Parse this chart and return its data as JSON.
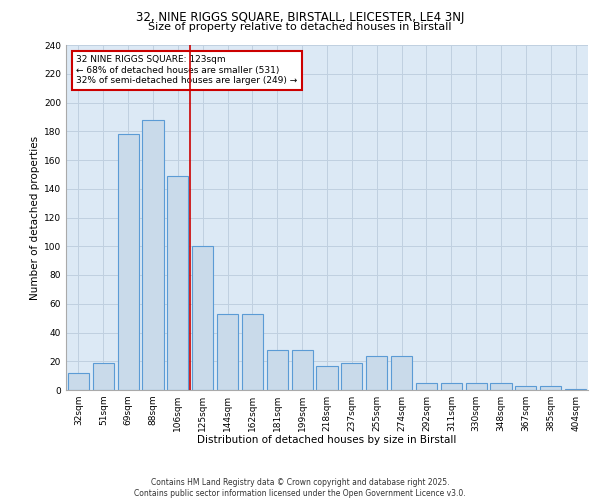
{
  "title1": "32, NINE RIGGS SQUARE, BIRSTALL, LEICESTER, LE4 3NJ",
  "title2": "Size of property relative to detached houses in Birstall",
  "xlabel": "Distribution of detached houses by size in Birstall",
  "ylabel": "Number of detached properties",
  "categories": [
    "32sqm",
    "51sqm",
    "69sqm",
    "88sqm",
    "106sqm",
    "125sqm",
    "144sqm",
    "162sqm",
    "181sqm",
    "199sqm",
    "218sqm",
    "237sqm",
    "255sqm",
    "274sqm",
    "292sqm",
    "311sqm",
    "330sqm",
    "348sqm",
    "367sqm",
    "385sqm",
    "404sqm"
  ],
  "bar_values": [
    12,
    19,
    178,
    188,
    149,
    100,
    53,
    53,
    28,
    28,
    17,
    19,
    24,
    24,
    5,
    5,
    5,
    5,
    3,
    3,
    1
  ],
  "bar_color": "#c9daea",
  "bar_edgecolor": "#5b9bd5",
  "bar_linewidth": 0.8,
  "vline_color": "#cc0000",
  "vline_linewidth": 1.2,
  "annotation_text": "32 NINE RIGGS SQUARE: 123sqm\n← 68% of detached houses are smaller (531)\n32% of semi-detached houses are larger (249) →",
  "annotation_box_edgecolor": "#cc0000",
  "annotation_fontsize": 6.5,
  "ylim": [
    0,
    240
  ],
  "yticks": [
    0,
    20,
    40,
    60,
    80,
    100,
    120,
    140,
    160,
    180,
    200,
    220,
    240
  ],
  "grid_color": "#c0d0e0",
  "background_color": "#dce9f5",
  "footer": "Contains HM Land Registry data © Crown copyright and database right 2025.\nContains public sector information licensed under the Open Government Licence v3.0.",
  "title_fontsize": 8.5,
  "subtitle_fontsize": 8,
  "xlabel_fontsize": 7.5,
  "ylabel_fontsize": 7.5,
  "tick_fontsize": 6.5,
  "footer_fontsize": 5.5
}
